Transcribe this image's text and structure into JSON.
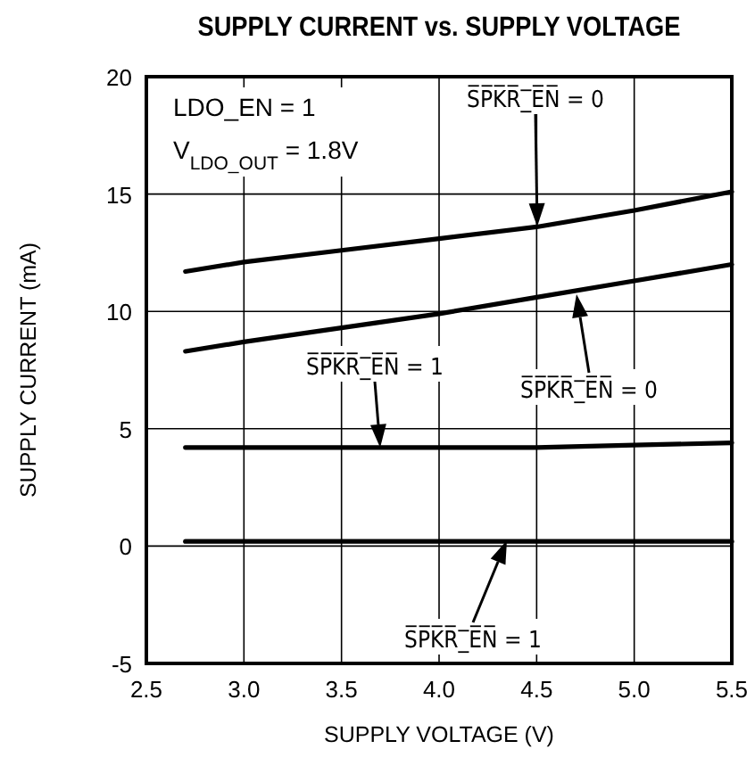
{
  "chart_data": {
    "type": "line",
    "title": "SUPPLY CURRENT vs. SUPPLY VOLTAGE",
    "xlabel": "SUPPLY VOLTAGE (V)",
    "ylabel": "SUPPLY CURRENT (mA)",
    "xlim": [
      2.5,
      5.5
    ],
    "xticks": [
      2.5,
      {
        "value": 3,
        "label": "3.0"
      },
      3.5,
      {
        "value": 4,
        "label": "4.0"
      },
      4.5,
      {
        "value": 5,
        "label": "5.0"
      },
      5.5
    ],
    "ylim": [
      -5,
      20
    ],
    "yticks": [
      -5,
      0,
      5,
      10,
      15,
      20
    ],
    "grid": true,
    "marker": "none",
    "line_style": "solid",
    "series": [
      {
        "color": "#000000",
        "x": [
          2.7,
          3.0,
          3.5,
          4.0,
          4.5,
          5.0,
          5.5
        ],
        "values": [
          11.7,
          12.1,
          12.6,
          13.1,
          13.6,
          14.3,
          15.1
        ]
      },
      {
        "color": "#000000",
        "x": [
          2.7,
          3.0,
          3.5,
          4.0,
          4.5,
          5.0,
          5.5
        ],
        "values": [
          8.3,
          8.7,
          9.3,
          9.9,
          10.6,
          11.3,
          12.0
        ]
      },
      {
        "color": "#000000",
        "x": [
          2.7,
          3.5,
          4.5,
          5.0,
          5.5
        ],
        "values": [
          4.2,
          4.2,
          4.2,
          4.3,
          4.4
        ]
      },
      {
        "color": "#000000",
        "x": [
          2.7,
          5.5
        ],
        "values": [
          0.2,
          0.2
        ]
      }
    ],
    "annotations": [
      "LDO_EN = 1",
      "V$_{LDO_OUT}$ = 1.8V",
      "S̅P̅K̅R̅_̅E̅N̅ = 0",
      "S̅P̅K̅R̅_̅E̅N̅ = 0",
      "S̅P̅K̅R̅_̅E̅N̅ = 1",
      "S̅P̅K̅R̅_̅E̅N̅ = 1"
    ]
  }
}
